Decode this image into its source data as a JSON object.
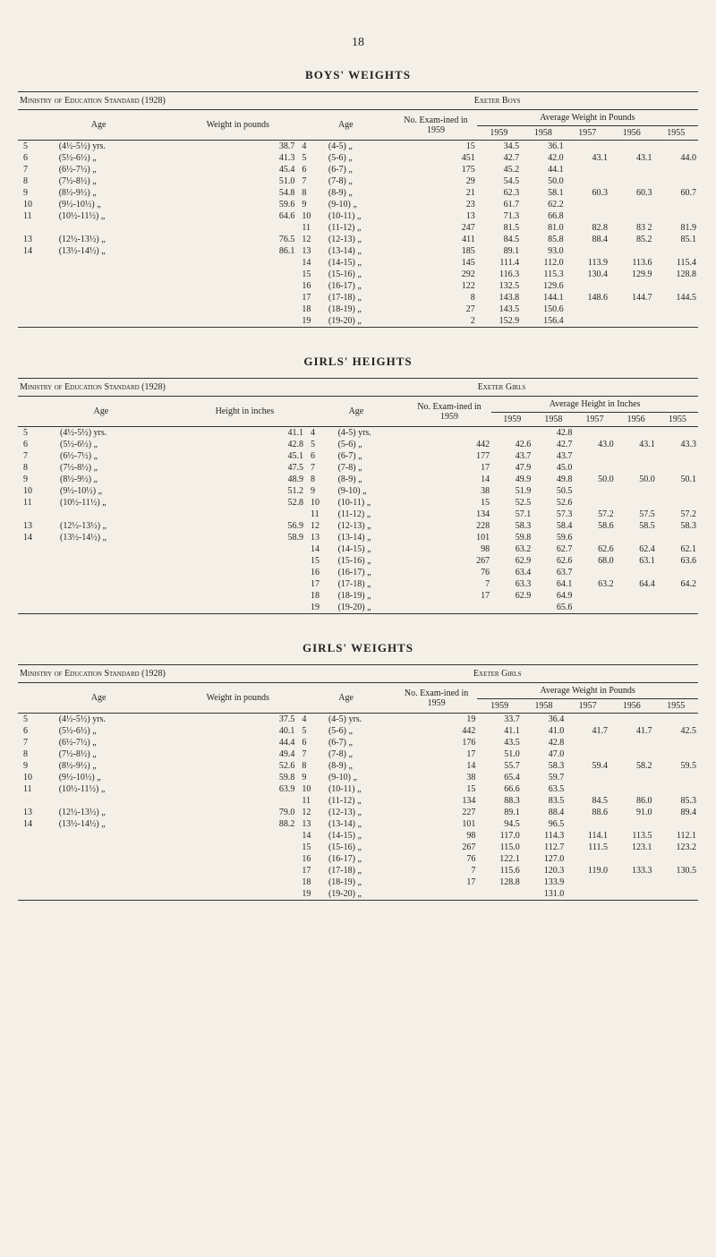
{
  "page_number": "18",
  "tables": [
    {
      "title": "BOYS' WEIGHTS",
      "left_header": "Ministry of Education Standard (1928)",
      "right_header": "Exeter Boys",
      "stat_col_label": "Weight in pounds",
      "avg_label": "Average Weight in Pounds",
      "years": [
        "1959",
        "1958",
        "1957",
        "1956",
        "1955"
      ],
      "left_rows": [
        {
          "age": "5",
          "range": "(4½-5½) yrs.",
          "val": "38.7"
        },
        {
          "age": "6",
          "range": "(5½-6½)  „",
          "val": "41.3"
        },
        {
          "age": "7",
          "range": "(6½-7½)  „",
          "val": "45.4"
        },
        {
          "age": "8",
          "range": "(7½-8½)  „",
          "val": "51.0"
        },
        {
          "age": "9",
          "range": "(8½-9½)  „",
          "val": "54.8"
        },
        {
          "age": "10",
          "range": "(9½-10½)  „",
          "val": "59.6"
        },
        {
          "age": "11",
          "range": "(10½-11½)  „",
          "val": "64.6"
        },
        {
          "age": "",
          "range": "",
          "val": ""
        },
        {
          "age": "13",
          "range": "(12½-13½)  „",
          "val": "76.5"
        },
        {
          "age": "14",
          "range": "(13½-14½)  „",
          "val": "86.1"
        },
        {
          "age": "",
          "range": "",
          "val": ""
        },
        {
          "age": "",
          "range": "",
          "val": ""
        },
        {
          "age": "",
          "range": "",
          "val": ""
        },
        {
          "age": "",
          "range": "",
          "val": ""
        },
        {
          "age": "",
          "range": "",
          "val": ""
        },
        {
          "age": "",
          "range": "",
          "val": ""
        }
      ],
      "right_rows": [
        {
          "age": "4",
          "range": "(4-5)  „",
          "n": "15",
          "v": [
            "34.5",
            "36.1",
            "",
            "",
            ""
          ]
        },
        {
          "age": "5",
          "range": "(5-6)  „",
          "n": "451",
          "v": [
            "42.7",
            "42.0",
            "43.1",
            "43.1",
            "44.0"
          ]
        },
        {
          "age": "6",
          "range": "(6-7)  „",
          "n": "175",
          "v": [
            "45.2",
            "44.1",
            "",
            "",
            ""
          ]
        },
        {
          "age": "7",
          "range": "(7-8)  „",
          "n": "29",
          "v": [
            "54.5",
            "50.0",
            "",
            "",
            ""
          ]
        },
        {
          "age": "8",
          "range": "(8-9)  „",
          "n": "21",
          "v": [
            "62.3",
            "58.1",
            "60.3",
            "60.3",
            "60.7"
          ]
        },
        {
          "age": "9",
          "range": "(9-10)  „",
          "n": "23",
          "v": [
            "61.7",
            "62.2",
            "",
            "",
            ""
          ]
        },
        {
          "age": "10",
          "range": "(10-11)  „",
          "n": "13",
          "v": [
            "71.3",
            "66.8",
            "",
            "",
            ""
          ]
        },
        {
          "age": "11",
          "range": "(11-12)  „",
          "n": "247",
          "v": [
            "81.5",
            "81.0",
            "82.8",
            "83 2",
            "81.9"
          ]
        },
        {
          "age": "12",
          "range": "(12-13)  „",
          "n": "411",
          "v": [
            "84.5",
            "85.8",
            "88.4",
            "85.2",
            "85.1"
          ]
        },
        {
          "age": "13",
          "range": "(13-14)  „",
          "n": "185",
          "v": [
            "89.1",
            "93.0",
            "",
            "",
            ""
          ]
        },
        {
          "age": "14",
          "range": "(14-15)  „",
          "n": "145",
          "v": [
            "111.4",
            "112.0",
            "113.9",
            "113.6",
            "115.4"
          ]
        },
        {
          "age": "15",
          "range": "(15-16)  „",
          "n": "292",
          "v": [
            "116.3",
            "115.3",
            "130.4",
            "129.9",
            "128.8"
          ]
        },
        {
          "age": "16",
          "range": "(16-17)  „",
          "n": "122",
          "v": [
            "132.5",
            "129.6",
            "",
            "",
            ""
          ]
        },
        {
          "age": "17",
          "range": "(17-18)  „",
          "n": "8",
          "v": [
            "143.8",
            "144.1",
            "148.6",
            "144.7",
            "144.5"
          ]
        },
        {
          "age": "18",
          "range": "(18-19)  „",
          "n": "27",
          "v": [
            "143.5",
            "150.6",
            "",
            "",
            ""
          ]
        },
        {
          "age": "19",
          "range": "(19-20)  „",
          "n": "2",
          "v": [
            "152.9",
            "156.4",
            "",
            "",
            ""
          ]
        }
      ]
    },
    {
      "title": "GIRLS' HEIGHTS",
      "left_header": "Ministry of Education Standard (1928)",
      "right_header": "Exeter Girls",
      "stat_col_label": "Height in inches",
      "avg_label": "Average Height in Inches",
      "years": [
        "1959",
        "1958",
        "1957",
        "1956",
        "1955"
      ],
      "left_rows": [
        {
          "age": "5",
          "range": "(4½-5½) yrs.",
          "val": "41.1"
        },
        {
          "age": "6",
          "range": "(5½-6½)  „",
          "val": "42.8"
        },
        {
          "age": "7",
          "range": "(6½-7½)  „",
          "val": "45.1"
        },
        {
          "age": "8",
          "range": "(7½-8½)  „",
          "val": "47.5"
        },
        {
          "age": "9",
          "range": "(8½-9½)  „",
          "val": "48.9"
        },
        {
          "age": "10",
          "range": "(9½-10½)  „",
          "val": "51.2"
        },
        {
          "age": "11",
          "range": "(10½-11½)  „",
          "val": "52.8"
        },
        {
          "age": "",
          "range": "",
          "val": ""
        },
        {
          "age": "13",
          "range": "(12½-13½)  „",
          "val": "56.9"
        },
        {
          "age": "14",
          "range": "(13½-14½)  „",
          "val": "58.9"
        },
        {
          "age": "",
          "range": "",
          "val": ""
        },
        {
          "age": "",
          "range": "",
          "val": ""
        },
        {
          "age": "",
          "range": "",
          "val": ""
        },
        {
          "age": "",
          "range": "",
          "val": ""
        },
        {
          "age": "",
          "range": "",
          "val": ""
        },
        {
          "age": "",
          "range": "",
          "val": ""
        }
      ],
      "right_rows": [
        {
          "age": "4",
          "range": "(4-5) yrs.",
          "n": "",
          "v": [
            "",
            "42.8",
            "",
            "",
            ""
          ]
        },
        {
          "age": "5",
          "range": "(5-6)  „",
          "n": "442",
          "v": [
            "42.6",
            "42.7",
            "43.0",
            "43.1",
            "43.3"
          ]
        },
        {
          "age": "6",
          "range": "(6-7)  „",
          "n": "177",
          "v": [
            "43.7",
            "43.7",
            "",
            "",
            ""
          ]
        },
        {
          "age": "7",
          "range": "(7-8)  „",
          "n": "17",
          "v": [
            "47.9",
            "45.0",
            "",
            "",
            ""
          ]
        },
        {
          "age": "8",
          "range": "(8-9)  „",
          "n": "14",
          "v": [
            "49.9",
            "49.8",
            "50.0",
            "50.0",
            "50.1"
          ]
        },
        {
          "age": "9",
          "range": "(9-10)  „",
          "n": "38",
          "v": [
            "51.9",
            "50.5",
            "",
            "",
            ""
          ]
        },
        {
          "age": "10",
          "range": "(10-11)  „",
          "n": "15",
          "v": [
            "52.5",
            "52.6",
            "",
            "",
            ""
          ]
        },
        {
          "age": "11",
          "range": "(11-12)  „",
          "n": "134",
          "v": [
            "57.1",
            "57.3",
            "57.2",
            "57.5",
            "57.2"
          ]
        },
        {
          "age": "12",
          "range": "(12-13)  „",
          "n": "228",
          "v": [
            "58.3",
            "58.4",
            "58.6",
            "58.5",
            "58.3"
          ]
        },
        {
          "age": "13",
          "range": "(13-14)  „",
          "n": "101",
          "v": [
            "59.8",
            "59.6",
            "",
            "",
            ""
          ]
        },
        {
          "age": "14",
          "range": "(14-15)  „",
          "n": "98",
          "v": [
            "63.2",
            "62.7",
            "62.6",
            "62.4",
            "62.1"
          ]
        },
        {
          "age": "15",
          "range": "(15-16)  „",
          "n": "267",
          "v": [
            "62.9",
            "62.6",
            "68.0",
            "63.1",
            "63.6"
          ]
        },
        {
          "age": "16",
          "range": "(16-17)  „",
          "n": "76",
          "v": [
            "63.4",
            "63.7",
            "",
            "",
            ""
          ]
        },
        {
          "age": "17",
          "range": "(17-18)  „",
          "n": "7",
          "v": [
            "63.3",
            "64.1",
            "63.2",
            "64.4",
            "64.2"
          ]
        },
        {
          "age": "18",
          "range": "(18-19)  „",
          "n": "17",
          "v": [
            "62.9",
            "64.9",
            "",
            "",
            ""
          ]
        },
        {
          "age": "19",
          "range": "(19-20)  „",
          "n": "",
          "v": [
            "",
            "65.6",
            "",
            "",
            ""
          ]
        }
      ]
    },
    {
      "title": "GIRLS' WEIGHTS",
      "left_header": "Ministry of Education Standard (1928)",
      "right_header": "Exeter Girls",
      "stat_col_label": "Weight in pounds",
      "avg_label": "Average Weight in Pounds",
      "years": [
        "1959",
        "1958",
        "1957",
        "1956",
        "1955"
      ],
      "left_rows": [
        {
          "age": "5",
          "range": "(4½-5½) yrs.",
          "val": "37.5"
        },
        {
          "age": "6",
          "range": "(5½-6½)  „",
          "val": "40.1"
        },
        {
          "age": "7",
          "range": "(6½-7½)  „",
          "val": "44.4"
        },
        {
          "age": "8",
          "range": "(7½-8½)  „",
          "val": "49.4"
        },
        {
          "age": "9",
          "range": "(8½-9½)  „",
          "val": "52.6"
        },
        {
          "age": "10",
          "range": "(9½-10½)  „",
          "val": "59.8"
        },
        {
          "age": "11",
          "range": "(10½-11½)  „",
          "val": "63.9"
        },
        {
          "age": "",
          "range": "",
          "val": ""
        },
        {
          "age": "13",
          "range": "(12½-13½)  „",
          "val": "79.0"
        },
        {
          "age": "14",
          "range": "(13½-14½)  „",
          "val": "88.2"
        },
        {
          "age": "",
          "range": "",
          "val": ""
        },
        {
          "age": "",
          "range": "",
          "val": ""
        },
        {
          "age": "",
          "range": "",
          "val": ""
        },
        {
          "age": "",
          "range": "",
          "val": ""
        },
        {
          "age": "",
          "range": "",
          "val": ""
        },
        {
          "age": "",
          "range": "",
          "val": ""
        }
      ],
      "right_rows": [
        {
          "age": "4",
          "range": "(4-5) yrs.",
          "n": "19",
          "v": [
            "33.7",
            "36.4",
            "",
            "",
            ""
          ]
        },
        {
          "age": "5",
          "range": "(5-6)  „",
          "n": "442",
          "v": [
            "41.1",
            "41.0",
            "41.7",
            "41.7",
            "42.5"
          ]
        },
        {
          "age": "6",
          "range": "(6-7)  „",
          "n": "176",
          "v": [
            "43.5",
            "42.8",
            "",
            "",
            ""
          ]
        },
        {
          "age": "7",
          "range": "(7-8)  „",
          "n": "17",
          "v": [
            "51.0",
            "47.0",
            "",
            "",
            ""
          ]
        },
        {
          "age": "8",
          "range": "(8-9)  „",
          "n": "14",
          "v": [
            "55.7",
            "58.3",
            "59.4",
            "58.2",
            "59.5"
          ]
        },
        {
          "age": "9",
          "range": "(9-10)  „",
          "n": "38",
          "v": [
            "65.4",
            "59.7",
            "",
            "",
            ""
          ]
        },
        {
          "age": "10",
          "range": "(10-11)  „",
          "n": "15",
          "v": [
            "66.6",
            "63.5",
            "",
            "",
            ""
          ]
        },
        {
          "age": "11",
          "range": "(11-12)  „",
          "n": "134",
          "v": [
            "88.3",
            "83.5",
            "84.5",
            "86.0",
            "85.3"
          ]
        },
        {
          "age": "12",
          "range": "(12-13)  „",
          "n": "227",
          "v": [
            "89.1",
            "88.4",
            "88.6",
            "91.0",
            "89.4"
          ]
        },
        {
          "age": "13",
          "range": "(13-14)  „",
          "n": "101",
          "v": [
            "94.5",
            "96.5",
            "",
            "",
            ""
          ]
        },
        {
          "age": "14",
          "range": "(14-15)  „",
          "n": "98",
          "v": [
            "117.0",
            "114.3",
            "114.1",
            "113.5",
            "112.1"
          ]
        },
        {
          "age": "15",
          "range": "(15-16)  „",
          "n": "267",
          "v": [
            "115.0",
            "112.7",
            "111.5",
            "123.1",
            "123.2"
          ]
        },
        {
          "age": "16",
          "range": "(16-17)  „",
          "n": "76",
          "v": [
            "122.1",
            "127.0",
            "",
            "",
            ""
          ]
        },
        {
          "age": "17",
          "range": "(17-18)  „",
          "n": "7",
          "v": [
            "115.6",
            "120.3",
            "119.0",
            "133.3",
            "130.5"
          ]
        },
        {
          "age": "18",
          "range": "(18-19)  „",
          "n": "17",
          "v": [
            "128.8",
            "133.9",
            "",
            "",
            ""
          ]
        },
        {
          "age": "19",
          "range": "(19-20)  „",
          "n": "",
          "v": [
            "",
            "131.0",
            "",
            "",
            ""
          ]
        }
      ]
    }
  ],
  "labels": {
    "age": "Age",
    "examined": "No. Exam-ined in 1959"
  }
}
